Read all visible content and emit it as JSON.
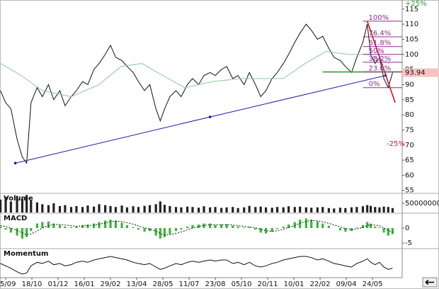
{
  "chart_data": [
    {
      "type": "line",
      "xlim": [
        -6.5,
        454
      ],
      "xticks": [
        {
          "value": 0,
          "label": "05/09"
        },
        {
          "value": 30,
          "label": "18/10"
        },
        {
          "value": 60,
          "label": "01/12"
        },
        {
          "value": 90,
          "label": "16/01"
        },
        {
          "value": 120,
          "label": "29/02"
        },
        {
          "value": 150,
          "label": "13/04"
        },
        {
          "value": 180,
          "label": "28/05"
        },
        {
          "value": 210,
          "label": "11/07"
        },
        {
          "value": 240,
          "label": "23/08"
        },
        {
          "value": 270,
          "label": "05/10"
        },
        {
          "value": 300,
          "label": "20/11"
        },
        {
          "value": 330,
          "label": "10/01"
        },
        {
          "value": 360,
          "label": "22/02"
        },
        {
          "value": 390,
          "label": "09/04"
        },
        {
          "value": 420,
          "label": "24/05"
        }
      ],
      "x": [
        -6,
        0,
        6,
        13,
        19,
        24,
        29,
        36,
        42,
        49,
        55,
        62,
        68,
        75,
        81,
        88,
        94,
        101,
        107,
        114,
        120,
        126,
        133,
        139,
        146,
        152,
        159,
        165,
        172,
        177,
        182,
        188,
        195,
        201,
        208,
        214,
        221,
        227,
        234,
        240,
        247,
        253,
        260,
        266,
        273,
        279,
        286,
        292,
        298,
        305,
        311,
        318,
        324,
        331,
        337,
        344,
        350,
        357,
        363,
        370,
        376,
        383,
        389,
        396,
        402,
        409,
        414,
        418,
        423,
        428,
        433,
        438,
        443
      ],
      "ylim": [
        54,
        118
      ],
      "yticks": [
        55,
        60,
        65,
        70,
        75,
        80,
        85,
        90,
        95,
        100,
        105,
        110,
        115
      ],
      "series": [
        {
          "color": "#111111",
          "values": [
            88,
            84,
            82,
            72,
            66,
            64,
            84,
            89,
            86,
            90,
            85,
            88,
            83,
            86,
            88,
            91,
            90,
            95,
            97,
            100,
            103,
            99,
            98,
            96,
            94,
            91,
            88,
            90,
            82,
            78,
            82,
            86,
            88,
            86,
            90,
            92,
            90,
            93,
            94,
            93,
            95,
            96,
            92,
            93,
            90,
            94,
            90,
            86,
            88,
            92,
            94,
            97,
            100,
            104,
            107,
            110,
            108,
            105,
            106,
            102,
            99,
            98,
            96,
            94,
            99,
            104,
            110,
            100,
            97,
            99,
            92,
            89,
            93.94
          ]
        },
        {
          "color": "#8cc9a0",
          "x": [
            -6,
            18,
            42,
            75,
            107,
            132,
            156,
            180,
            205,
            237,
            270,
            294,
            318,
            343,
            367,
            392,
            415,
            440
          ],
          "values": [
            97,
            93,
            88,
            86,
            90,
            96,
            97,
            93,
            89,
            91,
            92,
            92,
            92,
            97,
            101,
            100,
            100,
            97
          ]
        }
      ],
      "trendlines": [
        {
          "color": "#1c1ca8",
          "markers": true,
          "x": [
            11,
            234,
            435
          ],
          "values": [
            64,
            79.3,
            93
          ]
        },
        {
          "color": "#d4141c",
          "markers": false,
          "x": [
            414,
            446
          ],
          "values": [
            111,
            84
          ]
        },
        {
          "color": "#3a9a3a",
          "markers": false,
          "x": [
            363,
            454
          ],
          "values": [
            94.2,
            94.2
          ]
        }
      ],
      "fibonacci": {
        "color": "#8b2d8b",
        "start": 409,
        "low": 89,
        "high": 111,
        "ratios": [
          100,
          76.4,
          61.8,
          50,
          38.2,
          23.6,
          0
        ],
        "ratio_labels": [
          "100%",
          "76.4%",
          "61.8%",
          "50%",
          "38.2%",
          "23.6%",
          "0%"
        ]
      },
      "last_price": 93.94,
      "annotations": [
        {
          "text": "+25%",
          "color": "#2e9a2e"
        },
        {
          "text": "-25%",
          "color": "#cc2222"
        }
      ]
    },
    {
      "type": "bar",
      "title": "Volume",
      "ylim": [
        0,
        100000000
      ],
      "yticks": [
        50000000
      ],
      "series": [
        {
          "color": "#222222",
          "values": [
            70000000,
            85000000,
            60000000,
            90000000,
            75000000,
            95000000,
            65000000,
            55000000,
            45000000,
            40000000,
            50000000,
            35000000,
            40000000,
            30000000,
            35000000,
            30000000,
            38000000,
            32000000,
            45000000,
            40000000,
            35000000,
            30000000,
            38000000,
            28000000,
            34000000,
            30000000,
            36000000,
            40000000,
            45000000,
            60000000,
            42000000,
            35000000,
            30000000,
            28000000,
            32000000,
            30000000,
            26000000,
            34000000,
            28000000,
            30000000,
            25000000,
            28000000,
            30000000,
            24000000,
            28000000,
            36000000,
            30000000,
            32000000,
            28000000,
            26000000,
            30000000,
            28000000,
            34000000,
            30000000,
            32000000,
            28000000,
            26000000,
            28000000,
            30000000,
            24000000,
            22000000,
            26000000,
            24000000,
            28000000,
            30000000,
            34000000,
            40000000,
            36000000,
            30000000,
            28000000,
            32000000,
            30000000,
            24000000
          ]
        }
      ]
    },
    {
      "type": "bar",
      "title": "MACD",
      "ylim": [
        -6.6,
        4.7
      ],
      "yticks": [
        0,
        -5
      ],
      "series": [
        {
          "color": "#3cb43c",
          "values": [
            0.5,
            -0.5,
            -1.5,
            -2.5,
            -3.5,
            -3,
            -1,
            1.5,
            2,
            2.2,
            1.5,
            1,
            0.5,
            0.3,
            0.5,
            1,
            1.2,
            1.5,
            2,
            2.5,
            2.8,
            2.5,
            1.8,
            1,
            0.3,
            -0.5,
            -1.2,
            -1,
            -2.5,
            -3.5,
            -3,
            -2,
            -1,
            -0.5,
            0.5,
            1,
            1.2,
            1.5,
            1.5,
            1,
            1.2,
            1.3,
            0.8,
            0.5,
            0.2,
            0.3,
            -0.5,
            -1.5,
            -1.8,
            -1.2,
            -0.3,
            0.5,
            1.2,
            2,
            2.8,
            3.2,
            2.8,
            2.2,
            1.5,
            0.8,
            0,
            -0.8,
            -1.2,
            -1,
            0.2,
            1,
            2,
            1.5,
            0.5,
            0.2,
            -1.5,
            -2.5,
            -2
          ]
        },
        {
          "type": "line",
          "dashed": true,
          "color": "#111111",
          "values": [
            0.8,
            0.5,
            0,
            -0.8,
            -1.6,
            -2.2,
            -2,
            -1,
            0,
            0.8,
            1.2,
            1.2,
            1,
            0.8,
            0.6,
            0.7,
            0.8,
            1,
            1.3,
            1.7,
            2.1,
            2.3,
            2.2,
            1.8,
            1.3,
            0.7,
            0.1,
            -0.4,
            -1,
            -1.8,
            -2.3,
            -2.2,
            -1.8,
            -1.3,
            -0.6,
            0,
            0.5,
            0.9,
            1.1,
            1.1,
            1.1,
            1.1,
            1,
            0.8,
            0.6,
            0.4,
            0.1,
            -0.4,
            -0.9,
            -1.1,
            -0.9,
            -0.4,
            0.2,
            0.9,
            1.6,
            2.2,
            2.5,
            2.4,
            2.1,
            1.6,
            1,
            0.4,
            -0.2,
            -0.5,
            -0.3,
            0.2,
            0.8,
            1.1,
            1,
            0.8,
            0.1,
            -0.8,
            -1.3
          ]
        }
      ]
    },
    {
      "type": "line",
      "title": "Momentum",
      "ylim": [
        88,
        112
      ],
      "series": [
        {
          "color": "#111111",
          "values": [
            100,
            98,
            96,
            93,
            91,
            92,
            98,
            101,
            100,
            102,
            99,
            100,
            98,
            99,
            101,
            102,
            101,
            103,
            104,
            105,
            106,
            105,
            104,
            103,
            101,
            100,
            99,
            100,
            97,
            95,
            96,
            98,
            100,
            99,
            101,
            102,
            101,
            102,
            103,
            102,
            103,
            103,
            100,
            101,
            99,
            101,
            98,
            97,
            98,
            100,
            101,
            103,
            104,
            105,
            106,
            106,
            105,
            103,
            104,
            102,
            100,
            99,
            98,
            97,
            100,
            102,
            104,
            101,
            99,
            101,
            97,
            95,
            96
          ]
        }
      ]
    }
  ]
}
